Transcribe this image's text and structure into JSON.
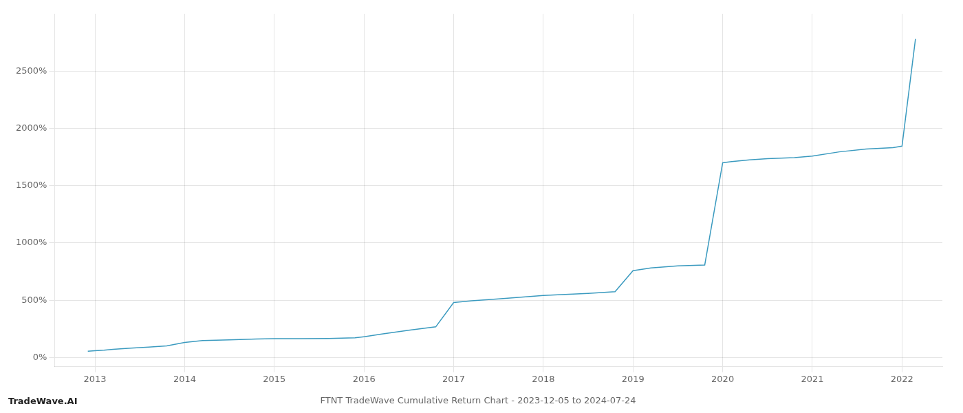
{
  "chart_data": {
    "type": "line",
    "title": "FTNT TradeWave Cumulative Return Chart - 2023-12-05 to 2024-07-24",
    "annotations": [
      "TradeWave.AI"
    ],
    "color": "#3a9abf",
    "grid": true,
    "xlim": [
      2012.55,
      2022.45
    ],
    "xticks": [
      2013,
      2014,
      2015,
      2016,
      2017,
      2018,
      2019,
      2020,
      2021,
      2022
    ],
    "ylim": [
      -80,
      3000
    ],
    "yticks": [
      {
        "value": 0,
        "label": "0%"
      },
      {
        "value": 500,
        "label": "500%"
      },
      {
        "value": 1000,
        "label": "1000%"
      },
      {
        "value": 1500,
        "label": "1500%"
      },
      {
        "value": 2000,
        "label": "2000%"
      },
      {
        "value": 2500,
        "label": "2500%"
      }
    ],
    "x": [
      2012.92,
      2013.0,
      2013.1,
      2013.2,
      2013.4,
      2013.6,
      2013.8,
      2014.0,
      2014.2,
      2014.5,
      2014.8,
      2015.0,
      2015.3,
      2015.6,
      2015.9,
      2016.0,
      2016.2,
      2016.5,
      2016.8,
      2017.0,
      2017.2,
      2017.5,
      2017.8,
      2018.0,
      2018.2,
      2018.5,
      2018.8,
      2019.0,
      2019.2,
      2019.5,
      2019.8,
      2020.0,
      2020.1,
      2020.3,
      2020.5,
      2020.8,
      2021.0,
      2021.3,
      2021.6,
      2021.9,
      2022.0,
      2022.15
    ],
    "values": [
      55,
      60,
      65,
      72,
      82,
      92,
      102,
      132,
      148,
      155,
      162,
      165,
      165,
      167,
      172,
      182,
      205,
      238,
      268,
      480,
      495,
      512,
      530,
      542,
      550,
      560,
      575,
      758,
      782,
      800,
      808,
      1700,
      1710,
      1725,
      1735,
      1745,
      1758,
      1795,
      1820,
      1832,
      1845,
      2780
    ]
  }
}
